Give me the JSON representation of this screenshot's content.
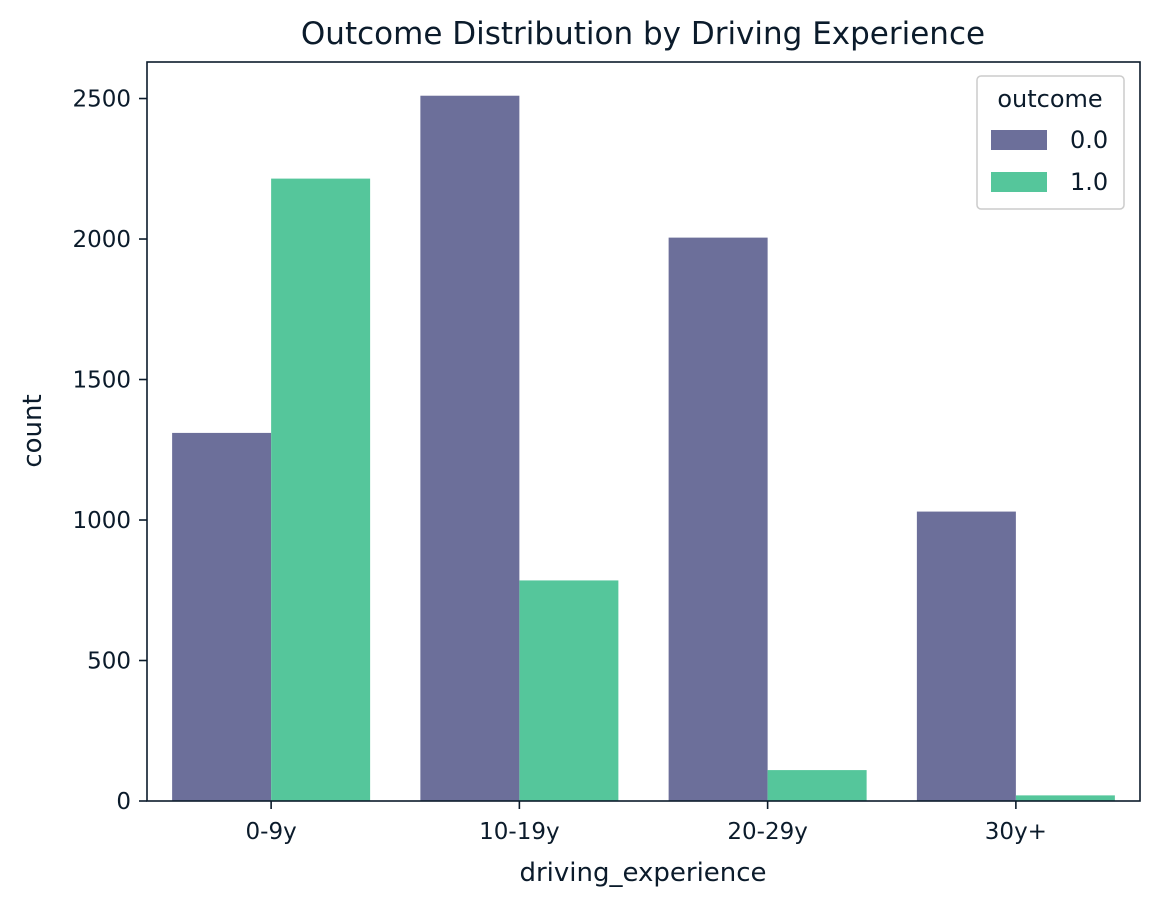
{
  "chart_data": {
    "type": "bar",
    "title": "Outcome Distribution by Driving Experience",
    "xlabel": "driving_experience",
    "ylabel": "count",
    "categories": [
      "0-9y",
      "10-19y",
      "20-29y",
      "30y+"
    ],
    "series": [
      {
        "name": "0.0",
        "values": [
          1310,
          2510,
          2005,
          1030
        ]
      },
      {
        "name": "1.0",
        "values": [
          2215,
          785,
          110,
          20
        ]
      }
    ],
    "ylim": [
      0,
      2630
    ],
    "yticks": [
      0,
      500,
      1000,
      1500,
      2000,
      2500
    ],
    "grid": false,
    "legend": {
      "title": "outcome",
      "placement": "top-right"
    },
    "colors": [
      "#6c6f9a",
      "#55c69b"
    ]
  }
}
